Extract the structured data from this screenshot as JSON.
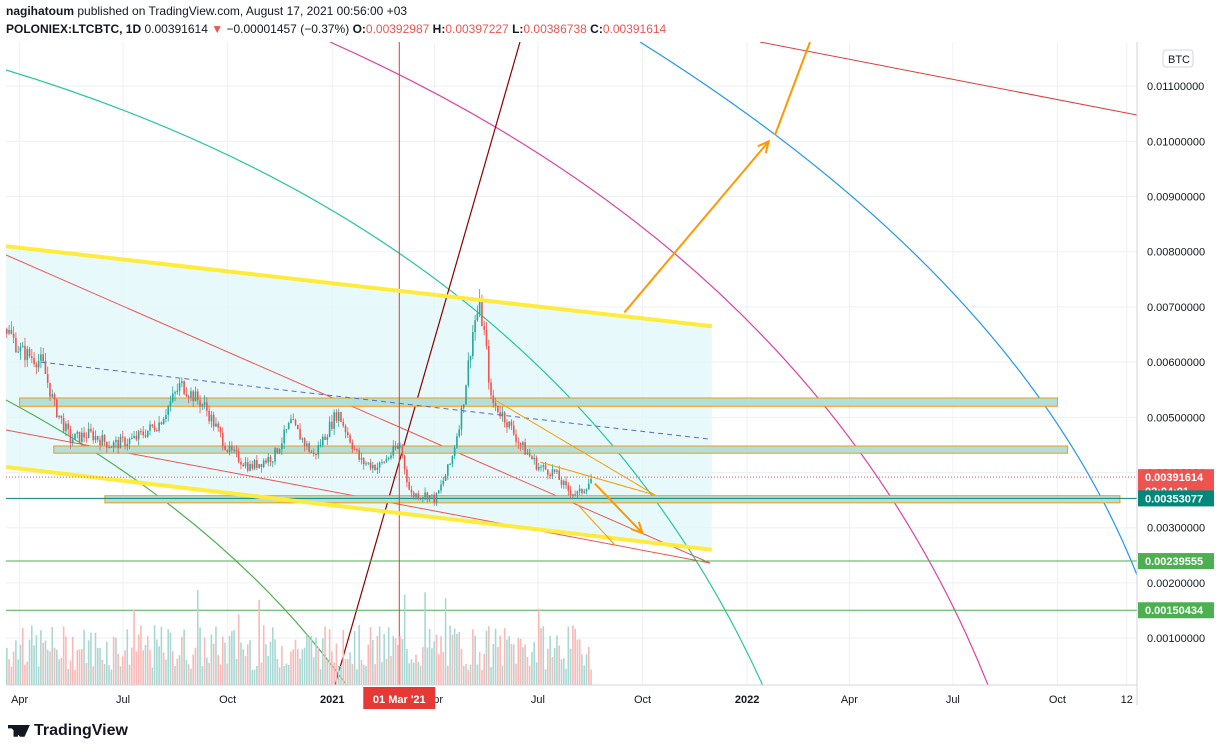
{
  "header": {
    "author": "nagihatoum",
    "published_text": "published on TradingView.com, August 17, 2021 00:56:00 +03",
    "symbol": "POLONIEX:LTCBTC, 1D",
    "last": "0.00391614",
    "change": "−0.00001457 (−0.37%)",
    "open_label": "O:",
    "open": "0.00392987",
    "high_label": "H:",
    "high": "0.00397227",
    "low_label": "L:",
    "low": "0.00386738",
    "close_label": "C:",
    "close": "0.00391614"
  },
  "footer": {
    "brand": "TradingView"
  },
  "colors": {
    "down": "#ef5350",
    "up": "#26a69a",
    "yellow": "#ffeb3b",
    "orange": "#ff9800",
    "channel_fill": "#e0f7fa",
    "zone_fill": "#b2dfdb",
    "green_line": "#4caf50",
    "blue_line": "#2196f3",
    "magenta": "#e040a0",
    "teal_arc": "#26c6a0"
  },
  "chart_data": {
    "type": "candlestick",
    "currency_badge": "BTC",
    "y_scale": "linear",
    "ylim": [
      0.00015,
      0.0118
    ],
    "y_ticks": [
      {
        "value": 0.001,
        "label": "0.00100000"
      },
      {
        "value": 0.002,
        "label": "0.00200000"
      },
      {
        "value": 0.003,
        "label": "0.00300000"
      },
      {
        "value": 0.004,
        "label": "0.00400000"
      },
      {
        "value": 0.005,
        "label": "0.00500000"
      },
      {
        "value": 0.006,
        "label": "0.00600000"
      },
      {
        "value": 0.007,
        "label": "0.00700000"
      },
      {
        "value": 0.008,
        "label": "0.00800000"
      },
      {
        "value": 0.009,
        "label": "0.00900000"
      },
      {
        "value": 0.01,
        "label": "0.01000000"
      },
      {
        "value": 0.011,
        "label": "0.01100000"
      }
    ],
    "x_range": [
      "2020-03-20",
      "2022-12-10"
    ],
    "x_ticks": [
      {
        "date": "2020-04-01",
        "label": "Apr"
      },
      {
        "date": "2020-07-01",
        "label": "Jul"
      },
      {
        "date": "2020-10-01",
        "label": "Oct"
      },
      {
        "date": "2021-01-01",
        "label": "2021"
      },
      {
        "date": "2021-04-01",
        "label": "Apr"
      },
      {
        "date": "2021-07-01",
        "label": "Jul"
      },
      {
        "date": "2021-10-01",
        "label": "Oct"
      },
      {
        "date": "2022-01-01",
        "label": "2022"
      },
      {
        "date": "2022-04-01",
        "label": "Apr"
      },
      {
        "date": "2022-07-01",
        "label": "Jul"
      },
      {
        "date": "2022-10-01",
        "label": "Oct"
      },
      {
        "date": "2022-12-01",
        "label": "12"
      }
    ],
    "crosshair": {
      "date": "2021-03-01",
      "label": "01 Mar '21"
    },
    "price_labels": [
      {
        "value": 0.00391614,
        "label": "0.00391614",
        "sub": "02:04:01",
        "color": "#ef5350"
      },
      {
        "value": 0.00353077,
        "label": "0.00353077",
        "color": "#00897b"
      },
      {
        "value": 0.00239555,
        "label": "0.00239555",
        "color": "#4caf50"
      },
      {
        "value": 0.00150434,
        "label": "0.00150434",
        "color": "#4caf50"
      }
    ],
    "price_path": [
      [
        "2020-03-20",
        0.0066
      ],
      [
        "2020-04-01",
        0.0062
      ],
      [
        "2020-04-20",
        0.006
      ],
      [
        "2020-05-01",
        0.0052
      ],
      [
        "2020-05-15",
        0.0046
      ],
      [
        "2020-06-01",
        0.0047
      ],
      [
        "2020-06-20",
        0.0045
      ],
      [
        "2020-07-10",
        0.0046
      ],
      [
        "2020-08-01",
        0.0049
      ],
      [
        "2020-08-20",
        0.0056
      ],
      [
        "2020-09-10",
        0.0052
      ],
      [
        "2020-10-01",
        0.0044
      ],
      [
        "2020-10-20",
        0.0041
      ],
      [
        "2020-11-10",
        0.0043
      ],
      [
        "2020-11-25",
        0.0049
      ],
      [
        "2020-12-15",
        0.0043
      ],
      [
        "2021-01-05",
        0.0051
      ],
      [
        "2021-01-25",
        0.0042
      ],
      [
        "2021-02-10",
        0.0041
      ],
      [
        "2021-03-01",
        0.0045
      ],
      [
        "2021-03-10",
        0.0036
      ],
      [
        "2021-03-25",
        0.0036
      ],
      [
        "2021-04-01",
        0.0035
      ],
      [
        "2021-04-15",
        0.0042
      ],
      [
        "2021-04-25",
        0.0052
      ],
      [
        "2021-05-05",
        0.0067
      ],
      [
        "2021-05-10",
        0.007
      ],
      [
        "2021-05-15",
        0.0064
      ],
      [
        "2021-05-20",
        0.0053
      ],
      [
        "2021-06-01",
        0.005
      ],
      [
        "2021-06-15",
        0.0045
      ],
      [
        "2021-07-01",
        0.0041
      ],
      [
        "2021-07-15",
        0.004
      ],
      [
        "2021-07-25",
        0.0037
      ],
      [
        "2021-08-05",
        0.0036
      ],
      [
        "2021-08-17",
        0.0039
      ]
    ],
    "horizontal_levels": [
      0.00353077,
      0.00239555,
      0.00150434
    ],
    "zones": [
      {
        "from": "2020-04-01",
        "to": "2022-10-01",
        "low": 0.0052,
        "high": 0.00535
      },
      {
        "from": "2020-05-01",
        "to": "2022-10-10",
        "low": 0.00435,
        "high": 0.00448
      },
      {
        "from": "2020-06-15",
        "to": "2022-11-25",
        "low": 0.00345,
        "high": 0.00358
      }
    ],
    "trendlines": [
      {
        "from": [
          "2020-03-20",
          0.0081
        ],
        "to": [
          "2021-12-01",
          0.00665
        ],
        "style": "channel-top"
      },
      {
        "from": [
          "2020-03-20",
          0.0041
        ],
        "to": [
          "2021-12-01",
          0.0026
        ],
        "style": "channel-bottom"
      },
      {
        "from": [
          "2020-04-20",
          0.006
        ],
        "to": [
          "2021-12-01",
          0.0046
        ],
        "style": "dashed"
      },
      {
        "from": [
          "2021-09-15",
          0.0069
        ],
        "to": [
          "2022-01-20",
          0.01
        ],
        "style": "arrow-up"
      },
      {
        "from": [
          "2021-08-20",
          0.0038
        ],
        "to": [
          "2021-10-01",
          0.0029
        ],
        "style": "arrow-down"
      }
    ]
  }
}
